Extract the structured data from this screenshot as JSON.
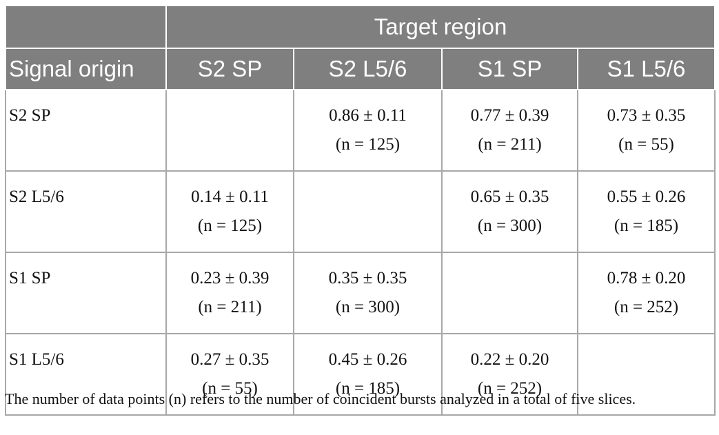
{
  "table": {
    "header": {
      "row_label": "Signal origin",
      "group": "Target region",
      "columns": [
        "S2 SP",
        "S2 L5/6",
        "S1 SP",
        "S1 L5/6"
      ]
    },
    "rows": [
      {
        "label": "S2 SP",
        "cells": [
          null,
          {
            "mean": "0.86 ± 0.11",
            "n": "(n = 125)"
          },
          {
            "mean": "0.77 ± 0.39",
            "n": "(n = 211)"
          },
          {
            "mean": "0.73 ± 0.35",
            "n": "(n = 55)"
          }
        ]
      },
      {
        "label": "S2 L5/6",
        "cells": [
          {
            "mean": "0.14 ± 0.11",
            "n": "(n = 125)"
          },
          null,
          {
            "mean": "0.65 ± 0.35",
            "n": "(n = 300)"
          },
          {
            "mean": "0.55 ± 0.26",
            "n": "(n = 185)"
          }
        ]
      },
      {
        "label": "S1 SP",
        "cells": [
          {
            "mean": "0.23 ± 0.39",
            "n": "(n = 211)"
          },
          {
            "mean": "0.35 ± 0.35",
            "n": "(n = 300)"
          },
          null,
          {
            "mean": "0.78 ± 0.20",
            "n": "(n = 252)"
          }
        ]
      },
      {
        "label": "S1 L5/6",
        "cells": [
          {
            "mean": "0.27 ± 0.35",
            "n": "(n = 55)"
          },
          {
            "mean": "0.45 ± 0.26",
            "n": "(n = 185)"
          },
          {
            "mean": "0.22 ± 0.20",
            "n": "(n = 252)"
          },
          null
        ]
      }
    ]
  },
  "footnote": "The number of data points (n) refers to the number of coincident bursts analyzed in a total of five slices."
}
